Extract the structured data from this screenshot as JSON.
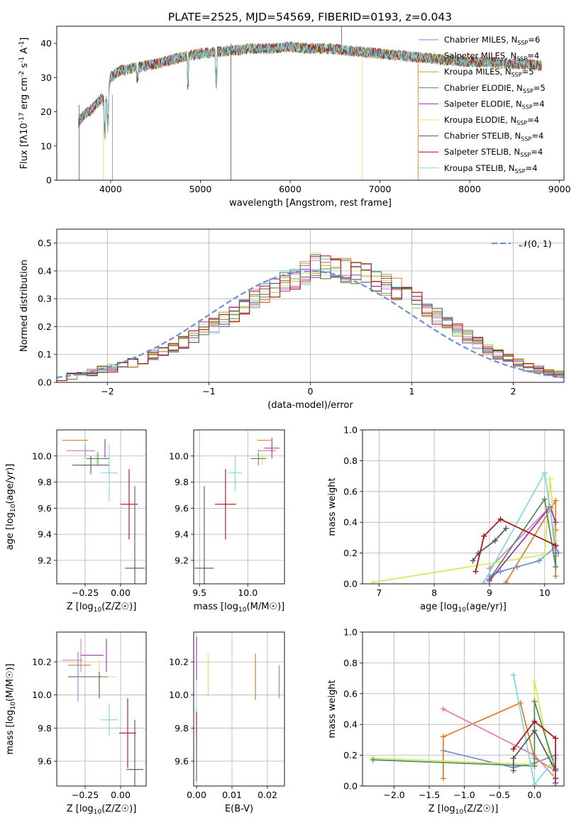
{
  "figure": {
    "title": "PLATE=2525, MJD=54569, FIBERID=0193, z=0.043"
  },
  "colors": {
    "series": [
      "#6a8fd8",
      "#e07b24",
      "#c89b2a",
      "#4f8a5b",
      "#9b30b0",
      "#d4e85a",
      "#555555",
      "#aa1111",
      "#7fd8e0"
    ],
    "pink": "#e07bb8",
    "grid": "#b0b0b0",
    "normal_curve": "#6a8fd8"
  },
  "chart_data": [
    {
      "id": "spectrum",
      "type": "line",
      "xlabel": "wavelength [Angstrom, rest frame]",
      "ylabel": "Flux [f_λ10^-17 erg cm^-2 s^-1 A^-1]",
      "xlim": [
        3400,
        9050
      ],
      "ylim": [
        0,
        45
      ],
      "xticks": [
        4000,
        5000,
        6000,
        7000,
        8000,
        9000
      ],
      "yticks": [
        0,
        10,
        20,
        30,
        40
      ],
      "grid": false,
      "legend_position": "top-right",
      "legend": [
        {
          "label": "Chabrier MILES, N_SSP=6"
        },
        {
          "label": "Salpeter MILES, N_SSP=4"
        },
        {
          "label": "Kroupa MILES, N_SSP=5"
        },
        {
          "label": "Chabrier ELODIE, N_SSP=5"
        },
        {
          "label": "Salpeter ELODIE, N_SSP=4"
        },
        {
          "label": "Kroupa ELODIE, N_SSP=4"
        },
        {
          "label": "Chabrier STELIB, N_SSP=4"
        },
        {
          "label": "Salpeter STELIB, N_SSP=4"
        },
        {
          "label": "Kroupa STELIB, N_SSP=4"
        }
      ],
      "continuum": {
        "x": [
          3640,
          3700,
          3800,
          3900,
          3950,
          4000,
          4100,
          4300,
          4500,
          4800,
          5000,
          5200,
          5400,
          5600,
          5800,
          6000,
          6200,
          6400,
          6600,
          6800,
          7000,
          7200,
          7400,
          7600,
          7800,
          8000,
          8200,
          8400,
          8600,
          8800
        ],
        "y": [
          17,
          19,
          21,
          24,
          22,
          30,
          32,
          33,
          34,
          36,
          37,
          37.5,
          38,
          38.5,
          38.5,
          39,
          38.5,
          38.5,
          38,
          37.5,
          37,
          36.5,
          36,
          35.5,
          35,
          34.5,
          34.5,
          34,
          34,
          33.5
        ]
      },
      "end_wavelength": [
        8800,
        8800,
        8800,
        8800,
        8750,
        8800,
        8800,
        8800,
        8780
      ]
    },
    {
      "id": "residuals",
      "type": "histogram",
      "xlabel": "(data-model)/error",
      "ylabel": "Normed distribution",
      "xlim": [
        -2.5,
        2.5
      ],
      "ylim": [
        0,
        0.55
      ],
      "xticks": [
        -2,
        -1,
        0,
        1,
        2
      ],
      "yticks": [
        0.0,
        0.1,
        0.2,
        0.3,
        0.4,
        0.5
      ],
      "grid": true,
      "legend_position": "top-right",
      "legend_label": "𝒩(0, 1)",
      "bin_width": 0.1,
      "bin_start": -2.5,
      "base_values": [
        0.018,
        0.022,
        0.028,
        0.035,
        0.045,
        0.05,
        0.058,
        0.07,
        0.082,
        0.098,
        0.11,
        0.125,
        0.145,
        0.165,
        0.19,
        0.205,
        0.225,
        0.245,
        0.27,
        0.3,
        0.32,
        0.34,
        0.36,
        0.375,
        0.395,
        0.42,
        0.41,
        0.405,
        0.4,
        0.395,
        0.385,
        0.37,
        0.35,
        0.335,
        0.31,
        0.29,
        0.26,
        0.235,
        0.21,
        0.19,
        0.165,
        0.14,
        0.12,
        0.1,
        0.085,
        0.07,
        0.055,
        0.045,
        0.035,
        0.03
      ]
    },
    {
      "id": "age_vs_Z",
      "type": "errorbar",
      "xlabel": "Z [log10(Z/Z☉)]",
      "ylabel": "age  [log10(age/yr)]",
      "xlim": [
        -0.45,
        0.18
      ],
      "ylim": [
        9.02,
        10.2
      ],
      "xticks": [
        -0.25,
        0.0
      ],
      "xticklabels": [
        "−0.25",
        "0.00"
      ],
      "yticks": [
        9.2,
        9.4,
        9.6,
        9.8,
        10.0
      ],
      "grid": true,
      "points": [
        {
          "x": -0.25,
          "y": 10.04,
          "xerr": 0.07,
          "yerr": 0.05,
          "c": 0
        },
        {
          "x": -0.32,
          "y": 10.12,
          "xerr": 0.09,
          "yerr": 0.0,
          "c": 1
        },
        {
          "x": -0.28,
          "y": 10.04,
          "xerr": 0.1,
          "yerr": 0.0,
          "c": 9
        },
        {
          "x": -0.17,
          "y": 9.98,
          "xerr": 0.1,
          "yerr": 0.04,
          "c": 5
        },
        {
          "x": -0.16,
          "y": 9.98,
          "xerr": 0.08,
          "yerr": 0.05,
          "c": 3
        },
        {
          "x": -0.11,
          "y": 10.06,
          "xerr": 0.0,
          "yerr": 0.07,
          "c": 4
        },
        {
          "x": -0.21,
          "y": 9.93,
          "xerr": 0.13,
          "yerr": 0.07,
          "c": 6
        },
        {
          "x": -0.08,
          "y": 9.87,
          "xerr": 0.06,
          "yerr": 0.22,
          "c": 8
        },
        {
          "x": 0.06,
          "y": 9.63,
          "xerr": 0.06,
          "yerr": 0.27,
          "c": 7
        },
        {
          "x": 0.1,
          "y": 9.14,
          "xerr": 0.07,
          "yerr": 0.63,
          "c": 6
        }
      ]
    },
    {
      "id": "age_vs_mass",
      "type": "errorbar",
      "xlabel": "mass [log10(M/M☉)]",
      "ylabel": "",
      "xlim": [
        9.44,
        10.38
      ],
      "ylim": [
        9.02,
        10.2
      ],
      "xticks": [
        9.5,
        10.0
      ],
      "xticklabels": [
        "9.5",
        "10.0"
      ],
      "yticks": [
        9.2,
        9.4,
        9.6,
        9.8,
        10.0
      ],
      "grid": true,
      "points": [
        {
          "x": 10.18,
          "y": 10.04,
          "xerr": 0.08,
          "yerr": 0.0,
          "c": 0
        },
        {
          "x": 10.17,
          "y": 10.12,
          "xerr": 0.07,
          "yerr": 0.0,
          "c": 1
        },
        {
          "x": 10.21,
          "y": 10.04,
          "xerr": 0.08,
          "yerr": 0.0,
          "c": 9
        },
        {
          "x": 10.15,
          "y": 9.98,
          "xerr": 0.06,
          "yerr": 0.05,
          "c": 5
        },
        {
          "x": 10.11,
          "y": 9.98,
          "xerr": 0.08,
          "yerr": 0.05,
          "c": 3
        },
        {
          "x": 10.25,
          "y": 10.06,
          "xerr": 0.08,
          "yerr": 0.08,
          "c": 4
        },
        {
          "x": 9.87,
          "y": 9.87,
          "xerr": 0.07,
          "yerr": 0.14,
          "c": 8
        },
        {
          "x": 9.77,
          "y": 9.63,
          "xerr": 0.11,
          "yerr": 0.27,
          "c": 7
        },
        {
          "x": 9.55,
          "y": 9.14,
          "xerr": 0.1,
          "yerr": 0.63,
          "c": 6
        }
      ]
    },
    {
      "id": "massweight_vs_age",
      "type": "line",
      "xlabel": "age  [log10(age/yr)]",
      "ylabel": "mass weight",
      "xlim": [
        6.7,
        10.35
      ],
      "ylim": [
        0,
        1.0
      ],
      "xticks": [
        7,
        8,
        9,
        10
      ],
      "yticks": [
        0.0,
        0.2,
        0.4,
        0.6,
        0.8,
        1.0
      ],
      "grid": true,
      "series": [
        {
          "c": 0,
          "x": [
            9.0,
            9.2,
            9.5,
            9.9,
            10.2,
            10.25
          ],
          "y": [
            0.05,
            0.08,
            0.11,
            0.15,
            0.24,
            0.2
          ]
        },
        {
          "c": 1,
          "x": [
            9.3,
            10.2,
            10.2,
            10.2,
            10.2
          ],
          "y": [
            0.01,
            0.54,
            0.35,
            0.2,
            0.05
          ]
        },
        {
          "c": 9,
          "x": [
            9.0,
            10.1,
            10.2
          ],
          "y": [
            0.1,
            0.5,
            0.18
          ]
        },
        {
          "c": 5,
          "x": [
            6.9,
            10.0,
            10.1,
            10.2
          ],
          "y": [
            0.01,
            0.19,
            0.68,
            0.28
          ]
        },
        {
          "c": 3,
          "x": [
            9.0,
            10.0,
            10.2,
            10.2
          ],
          "y": [
            0.03,
            0.55,
            0.11,
            0.2
          ]
        },
        {
          "c": 4,
          "x": [
            9.0,
            10.1,
            10.2
          ],
          "y": [
            0.02,
            0.5,
            0.4
          ]
        },
        {
          "c": 8,
          "x": [
            8.9,
            10.0,
            10.2
          ],
          "y": [
            0.01,
            0.72,
            0.25
          ]
        },
        {
          "c": 6,
          "x": [
            8.7,
            8.8,
            9.1,
            9.3
          ],
          "y": [
            0.15,
            0.2,
            0.28,
            0.36
          ]
        },
        {
          "c": 7,
          "x": [
            8.75,
            8.9,
            9.2,
            10.2
          ],
          "y": [
            0.08,
            0.31,
            0.42,
            0.25
          ]
        }
      ]
    },
    {
      "id": "mass_vs_Z",
      "type": "errorbar",
      "xlabel": "Z [log10(Z/Z☉)]",
      "ylabel": "mass [log10(M/M☉)]",
      "xlim": [
        -0.45,
        0.18
      ],
      "ylim": [
        9.45,
        10.38
      ],
      "xticks": [
        -0.25,
        0.0
      ],
      "xticklabels": [
        "−0.25",
        "0.00"
      ],
      "yticks": [
        9.6,
        9.8,
        10.0,
        10.2
      ],
      "grid": true,
      "points": [
        {
          "x": -0.29,
          "y": 10.18,
          "xerr": 0.08,
          "yerr": 0.0,
          "c": 1
        },
        {
          "x": -0.34,
          "y": 10.21,
          "xerr": 0.07,
          "yerr": 0.0,
          "c": 9
        },
        {
          "x": -0.28,
          "y": 10.24,
          "xerr": 0.0,
          "yerr": 0.1,
          "c": 9
        },
        {
          "x": -0.2,
          "y": 10.24,
          "xerr": 0.08,
          "yerr": 0.0,
          "c": 4
        },
        {
          "x": -0.1,
          "y": 10.24,
          "xerr": 0.0,
          "yerr": 0.1,
          "c": 4
        },
        {
          "x": -0.15,
          "y": 10.11,
          "xerr": 0.12,
          "yerr": 0.1,
          "c": 5
        },
        {
          "x": -0.21,
          "y": 10.11,
          "xerr": 0.12,
          "yerr": 0.0,
          "c": 3
        },
        {
          "x": -0.25,
          "y": 10.11,
          "xerr": 0.12,
          "yerr": 0.0,
          "c": 6
        },
        {
          "x": -0.3,
          "y": 10.11,
          "xerr": 0.0,
          "yerr": 0.15,
          "c": 0
        },
        {
          "x": -0.15,
          "y": 10.06,
          "xerr": 0.0,
          "yerr": 0.08,
          "c": 6
        },
        {
          "x": -0.08,
          "y": 9.85,
          "xerr": 0.06,
          "yerr": 0.1,
          "c": 8
        },
        {
          "x": 0.05,
          "y": 9.77,
          "xerr": 0.06,
          "yerr": 0.21,
          "c": 7
        },
        {
          "x": 0.1,
          "y": 9.55,
          "xerr": 0.06,
          "yerr": 0.3,
          "c": 6
        }
      ]
    },
    {
      "id": "mass_vs_EBV",
      "type": "errorbar",
      "xlabel": "E(B-V)",
      "ylabel": "",
      "xlim": [
        -0.0008,
        0.0248
      ],
      "ylim": [
        9.45,
        10.38
      ],
      "xticks": [
        0.0,
        0.01,
        0.02
      ],
      "xticklabels": [
        "0.00",
        "0.01",
        "0.02"
      ],
      "yticks": [
        9.6,
        9.8,
        10.0,
        10.2
      ],
      "grid": true,
      "points": [
        {
          "x": 0.0,
          "y": 10.22,
          "xerr": 0.0,
          "yerr": 0.13,
          "c": 4
        },
        {
          "x": 0.0,
          "y": 9.85,
          "xerr": 0.0,
          "yerr": 0.11,
          "c": 8
        },
        {
          "x": 0.0,
          "y": 9.77,
          "xerr": 0.0,
          "yerr": 0.13,
          "c": 7
        },
        {
          "x": 0.0,
          "y": 9.62,
          "xerr": 0.0,
          "yerr": 0.14,
          "c": 6
        },
        {
          "x": 0.0033,
          "y": 10.12,
          "xerr": 0.0,
          "yerr": 0.13,
          "c": 5
        },
        {
          "x": 0.0166,
          "y": 10.11,
          "xerr": 0.0,
          "yerr": 0.14,
          "c": 3
        },
        {
          "x": 0.0166,
          "y": 10.11,
          "xerr": 0.0,
          "yerr": 0.13,
          "c": 1
        },
        {
          "x": 0.0233,
          "y": 10.08,
          "xerr": 0.0,
          "yerr": 0.1,
          "c": 0
        }
      ]
    },
    {
      "id": "massweight_vs_Z",
      "type": "line",
      "xlabel": "Z [log10(Z/Z☉)]",
      "ylabel": "mass weight",
      "xlim": [
        -2.45,
        0.42
      ],
      "ylim": [
        0,
        1.0
      ],
      "xticks": [
        -2.0,
        -1.5,
        -1.0,
        -0.5,
        0.0
      ],
      "xticklabels": [
        "−2.0",
        "−1.5",
        "−1.0",
        "−0.5",
        "0.0"
      ],
      "yticks": [
        0.0,
        0.2,
        0.4,
        0.6,
        0.8,
        1.0
      ],
      "grid": true,
      "series": [
        {
          "c": 0,
          "x": [
            -1.3,
            -0.3,
            0.0,
            0.3
          ],
          "y": [
            0.23,
            0.12,
            0.15,
            0.2
          ]
        },
        {
          "c": 1,
          "x": [
            -1.3,
            -1.3,
            -0.2,
            0.0,
            0.3
          ],
          "y": [
            0.05,
            0.32,
            0.54,
            0.18,
            0.1
          ]
        },
        {
          "c": 9,
          "x": [
            -1.3,
            0.0,
            0.3
          ],
          "y": [
            0.5,
            0.2,
            0.05
          ]
        },
        {
          "c": 5,
          "x": [
            -2.3,
            0.0,
            0.0,
            0.3
          ],
          "y": [
            0.18,
            0.14,
            0.68,
            0.01
          ]
        },
        {
          "c": 3,
          "x": [
            -2.3,
            0.0,
            0.0,
            0.3
          ],
          "y": [
            0.17,
            0.13,
            0.55,
            0.11
          ]
        },
        {
          "c": 8,
          "x": [
            -0.3,
            0.0,
            0.3
          ],
          "y": [
            0.72,
            0.01,
            0.18
          ]
        },
        {
          "c": 6,
          "x": [
            -0.3,
            -0.3,
            0.0,
            0.3
          ],
          "y": [
            0.1,
            0.18,
            0.36,
            0.1
          ]
        },
        {
          "c": 7,
          "x": [
            -0.3,
            0.0,
            0.3,
            0.3
          ],
          "y": [
            0.24,
            0.42,
            0.31,
            0.05
          ]
        },
        {
          "c": 4,
          "x": [
            0.3,
            0.3
          ],
          "y": [
            0.02,
            0.1
          ]
        }
      ]
    }
  ]
}
